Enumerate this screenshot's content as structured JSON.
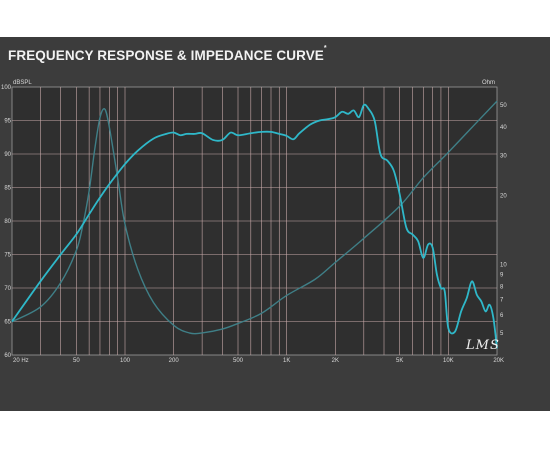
{
  "title": "FREQUENCY RESPONSE & IMPEDANCE CURVE",
  "title_mark": "*",
  "signature": "LMS",
  "chart_data": {
    "type": "line",
    "xscale": "log",
    "xlim": [
      20,
      20000
    ],
    "ylim_left": [
      60,
      100
    ],
    "ylim_right_log": [
      4,
      60
    ],
    "left_unit": "dBSPL",
    "right_unit": "Ohm",
    "x_ticks": [
      {
        "v": 20,
        "label": "20 Hz"
      },
      {
        "v": 50,
        "label": "50"
      },
      {
        "v": 100,
        "label": "100"
      },
      {
        "v": 200,
        "label": "200"
      },
      {
        "v": 500,
        "label": "500"
      },
      {
        "v": 1000,
        "label": "1K"
      },
      {
        "v": 2000,
        "label": "2K"
      },
      {
        "v": 5000,
        "label": "5K"
      },
      {
        "v": 10000,
        "label": "10K"
      },
      {
        "v": 20000,
        "label": "20K"
      }
    ],
    "y_left_ticks": [
      60,
      65,
      70,
      75,
      80,
      85,
      90,
      95,
      100
    ],
    "y_right_ticks": [
      5,
      6,
      7,
      8,
      9,
      10,
      20,
      30,
      40,
      50,
      60
    ],
    "grid": true,
    "colors": {
      "spl": "#2fb8c9",
      "impedance": "#3f7f87",
      "grid": "#c8a9a9"
    },
    "series": [
      {
        "axis": "left",
        "x": [
          20,
          30,
          40,
          50,
          60,
          70,
          80,
          100,
          120,
          150,
          180,
          200,
          220,
          240,
          270,
          300,
          350,
          400,
          450,
          500,
          600,
          700,
          800,
          900,
          1000,
          1100,
          1200,
          1400,
          1600,
          1800,
          2000,
          2200,
          2400,
          2600,
          2800,
          3000,
          3200,
          3500,
          3800,
          4200,
          4600,
          5000,
          5500,
          6000,
          6500,
          7000,
          7500,
          8000,
          8500,
          9000,
          9500,
          10000,
          11000,
          12000,
          13000,
          14000,
          15000,
          16000,
          17000,
          18000,
          19000,
          20000
        ],
        "y": [
          65,
          71,
          75,
          78,
          81,
          83.5,
          85.5,
          88.5,
          90.5,
          92.3,
          93,
          93.2,
          92.8,
          93,
          93,
          93.1,
          92.1,
          92.1,
          93.2,
          92.8,
          93.1,
          93.3,
          93.3,
          93.0,
          92.7,
          92.2,
          93.1,
          94.4,
          95.0,
          95.2,
          95.5,
          96.3,
          96.0,
          96.5,
          95.5,
          97.3,
          96.8,
          95.0,
          90.0,
          89.0,
          87.5,
          84.0,
          79.0,
          78.0,
          77.0,
          74.5,
          76.5,
          76.0,
          72.0,
          70.0,
          69.5,
          64.0,
          63.5,
          66.5,
          68.5,
          71.0,
          69.0,
          68.0,
          66.5,
          67.5,
          65.5,
          61.0
        ]
      },
      {
        "axis": "right",
        "x": [
          20,
          30,
          40,
          50,
          55,
          60,
          65,
          70,
          75,
          80,
          90,
          100,
          120,
          150,
          200,
          250,
          300,
          400,
          500,
          700,
          1000,
          1500,
          2000,
          3000,
          5000,
          7000,
          10000,
          15000,
          20000
        ],
        "y": [
          5.6,
          6.5,
          8.3,
          11.5,
          15,
          21,
          32,
          44,
          48,
          40,
          24,
          15,
          9.5,
          6.8,
          5.4,
          5.0,
          5.0,
          5.2,
          5.5,
          6.1,
          7.3,
          8.6,
          10.2,
          13,
          18,
          24,
          31,
          42,
          52
        ]
      }
    ]
  }
}
